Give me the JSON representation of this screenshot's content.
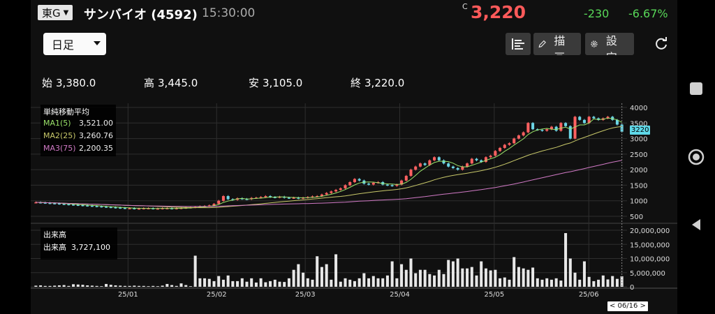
{
  "header": {
    "exchange": "東G",
    "stock": "サンバイオ (4592)",
    "time": "15:30:00",
    "price_flag": "C",
    "price": "3,220",
    "change": "-230",
    "change_pct": "-6.67%"
  },
  "toolbar": {
    "period": "日足",
    "draw_label": "描画",
    "settings_label": "設定"
  },
  "ohlc": {
    "open_label": "始",
    "open": "3,380.0",
    "high_label": "高",
    "high": "3,445.0",
    "low_label": "安",
    "low": "3,105.0",
    "close_label": "終",
    "close": "3,220.0"
  },
  "ma_legend": {
    "title": "単純移動平均",
    "items": [
      {
        "label": "MA1(5)",
        "value": "3,521.00",
        "color": "#9be36a"
      },
      {
        "label": "MA2(25)",
        "value": "3,260.76",
        "color": "#c9c96a"
      },
      {
        "label": "MA3(75)",
        "value": "2,200.35",
        "color": "#d17ac6"
      }
    ]
  },
  "volume_legend": {
    "title": "出来高",
    "label": "出来高",
    "value": "3,727,100"
  },
  "price_axis": [
    "4000",
    "3500",
    "3000",
    "2500",
    "2000",
    "1500",
    "1000",
    "500"
  ],
  "volume_axis": [
    "20,000,000",
    "15,000,000",
    "10,000,000",
    "5,000,000",
    "0"
  ],
  "x_axis": [
    "25/01",
    "25/02",
    "25/03",
    "25/04",
    "25/05",
    "25/06"
  ],
  "current_price_tag": "3220",
  "date_tag": "< 06/16 >",
  "colors": {
    "up": "#ff6161",
    "down": "#6cd6e6",
    "volume": "#e8e8e8",
    "grid": "#2e2e2e"
  },
  "chart_data": {
    "type": "candlestick",
    "x_labels": [
      "25/01",
      "25/02",
      "25/03",
      "25/04",
      "25/05",
      "25/06"
    ],
    "ylim": [
      500,
      4000
    ],
    "volume_ylim": [
      0,
      20000000
    ],
    "closes": [
      950,
      940,
      930,
      920,
      915,
      900,
      890,
      880,
      870,
      860,
      850,
      840,
      830,
      820,
      810,
      800,
      790,
      780,
      770,
      760,
      760,
      750,
      750,
      760,
      760,
      750,
      750,
      760,
      760,
      750,
      760,
      770,
      780,
      790,
      800,
      820,
      830,
      850,
      900,
      1000,
      1150,
      1050,
      1030,
      1080,
      1060,
      1050,
      1090,
      1100,
      1120,
      1150,
      1120,
      1110,
      1130,
      1100,
      1090,
      1100,
      1080,
      1100,
      1120,
      1140,
      1150,
      1200,
      1250,
      1300,
      1350,
      1400,
      1500,
      1600,
      1700,
      1650,
      1550,
      1520,
      1580,
      1600,
      1520,
      1500,
      1480,
      1520,
      1650,
      1800,
      2000,
      2100,
      2200,
      2150,
      2300,
      2400,
      2300,
      2200,
      2100,
      2050,
      2000,
      2100,
      2200,
      2350,
      2300,
      2250,
      2400,
      2450,
      2600,
      2700,
      2800,
      2850,
      3000,
      3100,
      3200,
      3500,
      3300,
      3280,
      3250,
      3300,
      3380,
      3250,
      3500,
      3400,
      3000,
      3700,
      3600,
      3500,
      3700,
      3650,
      3600,
      3650,
      3700,
      3600,
      3450,
      3220
    ],
    "volumes": [
      400000,
      500000,
      300000,
      300000,
      400000,
      500000,
      600000,
      300000,
      900000,
      800000,
      700000,
      500000,
      400000,
      300000,
      200000,
      1000000,
      700000,
      500000,
      400000,
      300000,
      300000,
      400000,
      300000,
      300000,
      200000,
      300000,
      200000,
      400000,
      1000000,
      600000,
      300000,
      1200000,
      600000,
      200000,
      11000000,
      3000000,
      3000000,
      2800000,
      2000000,
      3800000,
      2500000,
      4000000,
      2000000,
      2000000,
      3000000,
      1800000,
      3000000,
      1500000,
      3000000,
      1600000,
      2000000,
      2500000,
      1800000,
      1700000,
      3000000,
      6000000,
      8000000,
      5000000,
      3000000,
      2500000,
      10800000,
      7000000,
      8000000,
      2500000,
      11500000,
      1800000,
      3000000,
      2500000,
      2000000,
      3000000,
      4800000,
      3000000,
      3800000,
      3000000,
      3000000,
      4000000,
      9000000,
      3000000,
      8000000,
      6000000,
      10000000,
      4800000,
      6000000,
      6000000,
      4500000,
      4000000,
      6000000,
      4500000,
      9500000,
      9000000,
      10000000,
      6500000,
      6500000,
      7000000,
      4000000,
      9000000,
      6500000,
      5800000,
      6000000,
      3000000,
      3300000,
      2500000,
      10500000,
      7000000,
      6500000,
      6000000,
      6800000,
      3000000,
      2500000,
      3000000,
      2500000,
      3000000,
      2200000,
      19000000,
      10000000,
      5000000,
      2500000,
      9000000,
      3500000,
      2000000,
      2500000,
      4000000,
      2600000,
      3800000,
      2800000,
      3727100
    ]
  }
}
